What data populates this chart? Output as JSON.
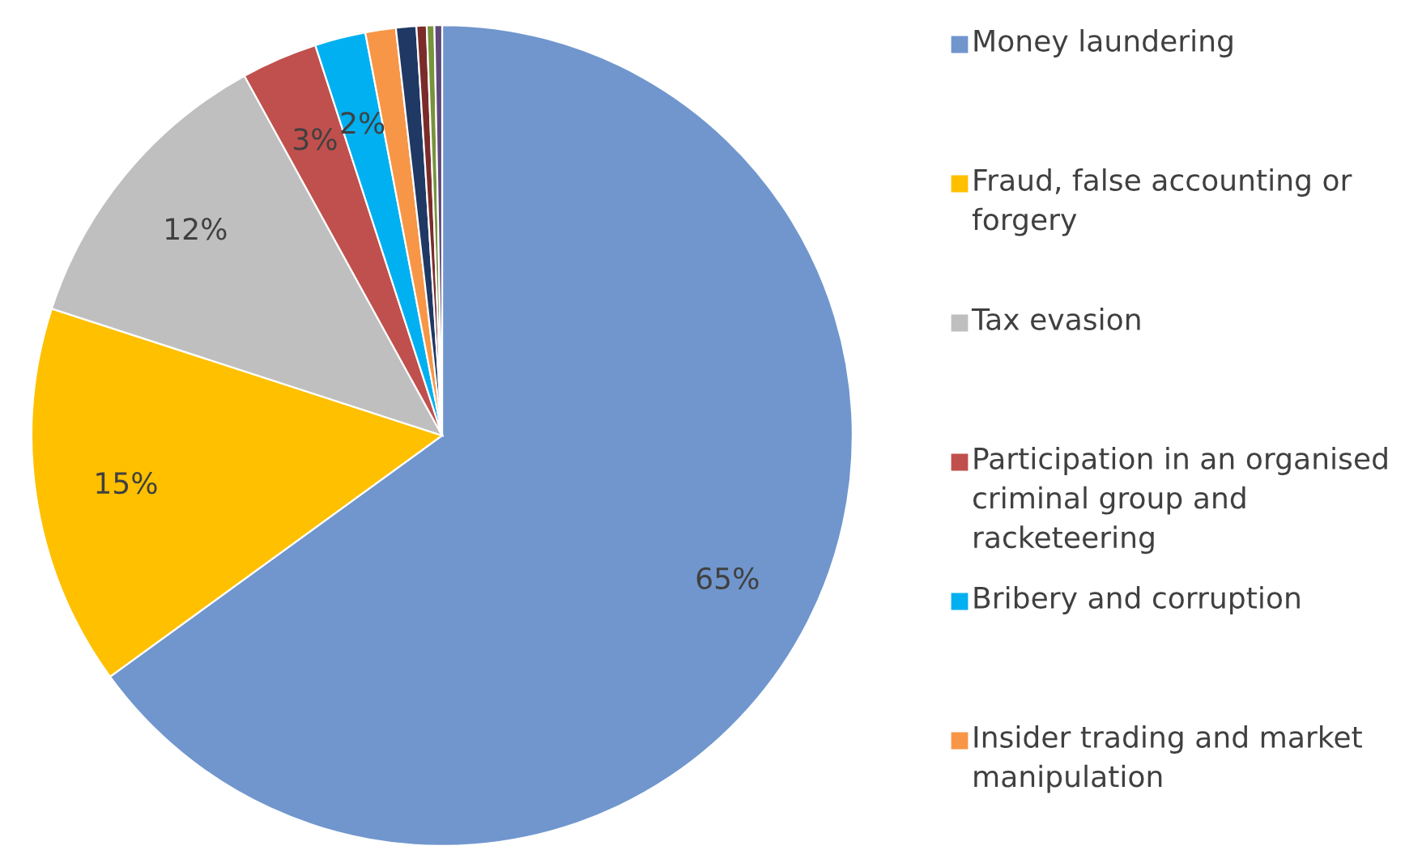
{
  "chart_data": {
    "type": "pie",
    "categories": [
      "Money laundering",
      "Fraud, false accounting or forgery",
      "Tax evasion",
      "Participation in an organised criminal group and racketeering",
      "Bribery and corruption",
      "Insider trading and market manipulation",
      null,
      null,
      null,
      null
    ],
    "values": [
      65,
      15,
      12,
      3,
      2,
      1.2,
      0.8,
      0.4,
      0.3,
      0.3
    ],
    "value_labels": [
      "65%",
      "15%",
      "12%",
      "3%",
      "2%",
      null,
      null,
      null,
      null,
      null
    ],
    "colors": [
      "#7096cd",
      "#ffc000",
      "#bfbfbf",
      "#c0504d",
      "#00b0f0",
      "#f79646",
      "#1f3864",
      "#7b2c2a",
      "#77933c",
      "#5f497a"
    ],
    "legend": "right"
  }
}
